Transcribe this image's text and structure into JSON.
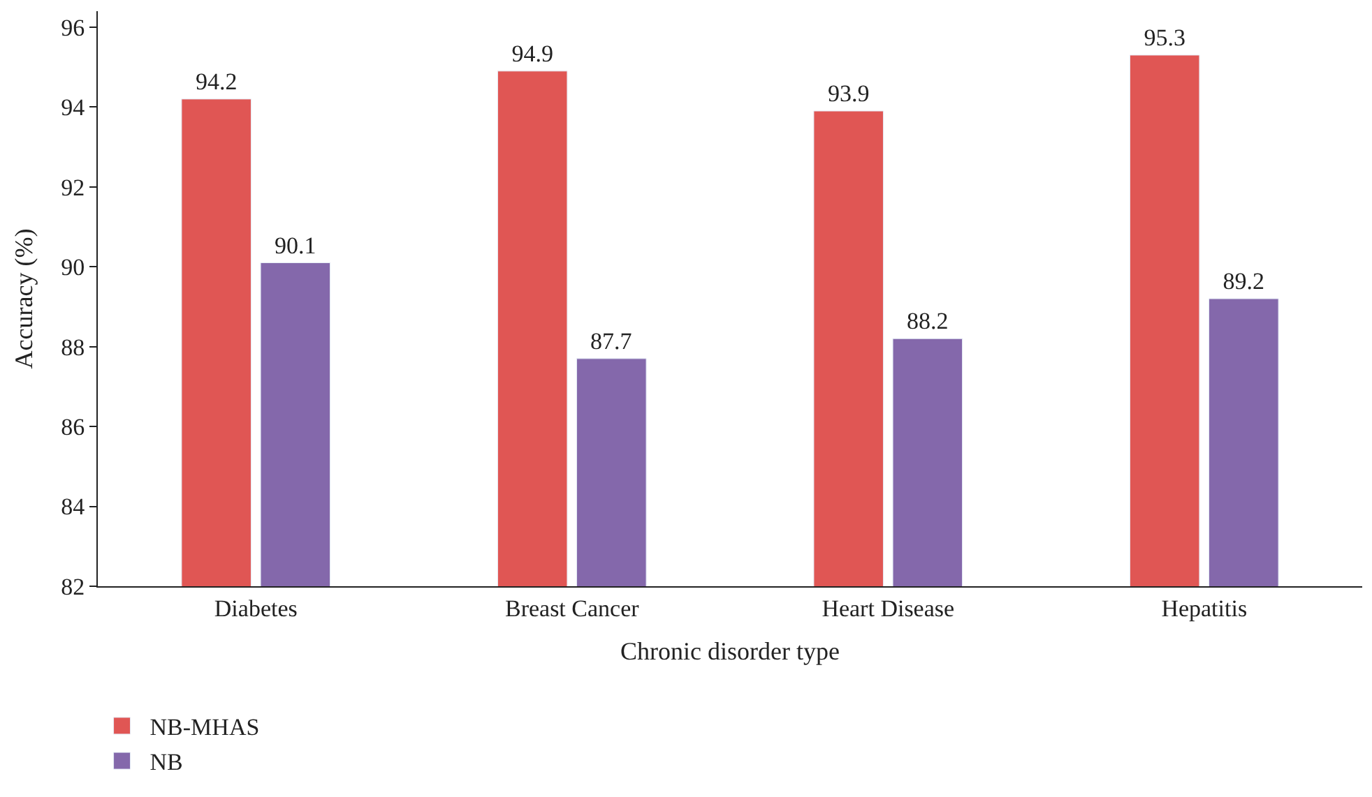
{
  "chart_data": {
    "type": "bar",
    "xlabel": "Chronic disorder type",
    "ylabel": "Accuracy (%)",
    "categories": [
      "Diabetes",
      "Breast Cancer",
      "Heart Disease",
      "Hepatitis"
    ],
    "series": [
      {
        "name": "NB-MHAS",
        "color": "#e05654",
        "values": [
          94.2,
          94.9,
          93.9,
          95.3
        ]
      },
      {
        "name": "NB",
        "color": "#8468ab",
        "values": [
          90.1,
          87.7,
          88.2,
          89.2
        ]
      }
    ],
    "ylim": [
      82,
      96.4
    ],
    "yticks": [
      82,
      84,
      86,
      88,
      90,
      92,
      94,
      96
    ],
    "data_labels": true,
    "legend": "bottom left"
  }
}
